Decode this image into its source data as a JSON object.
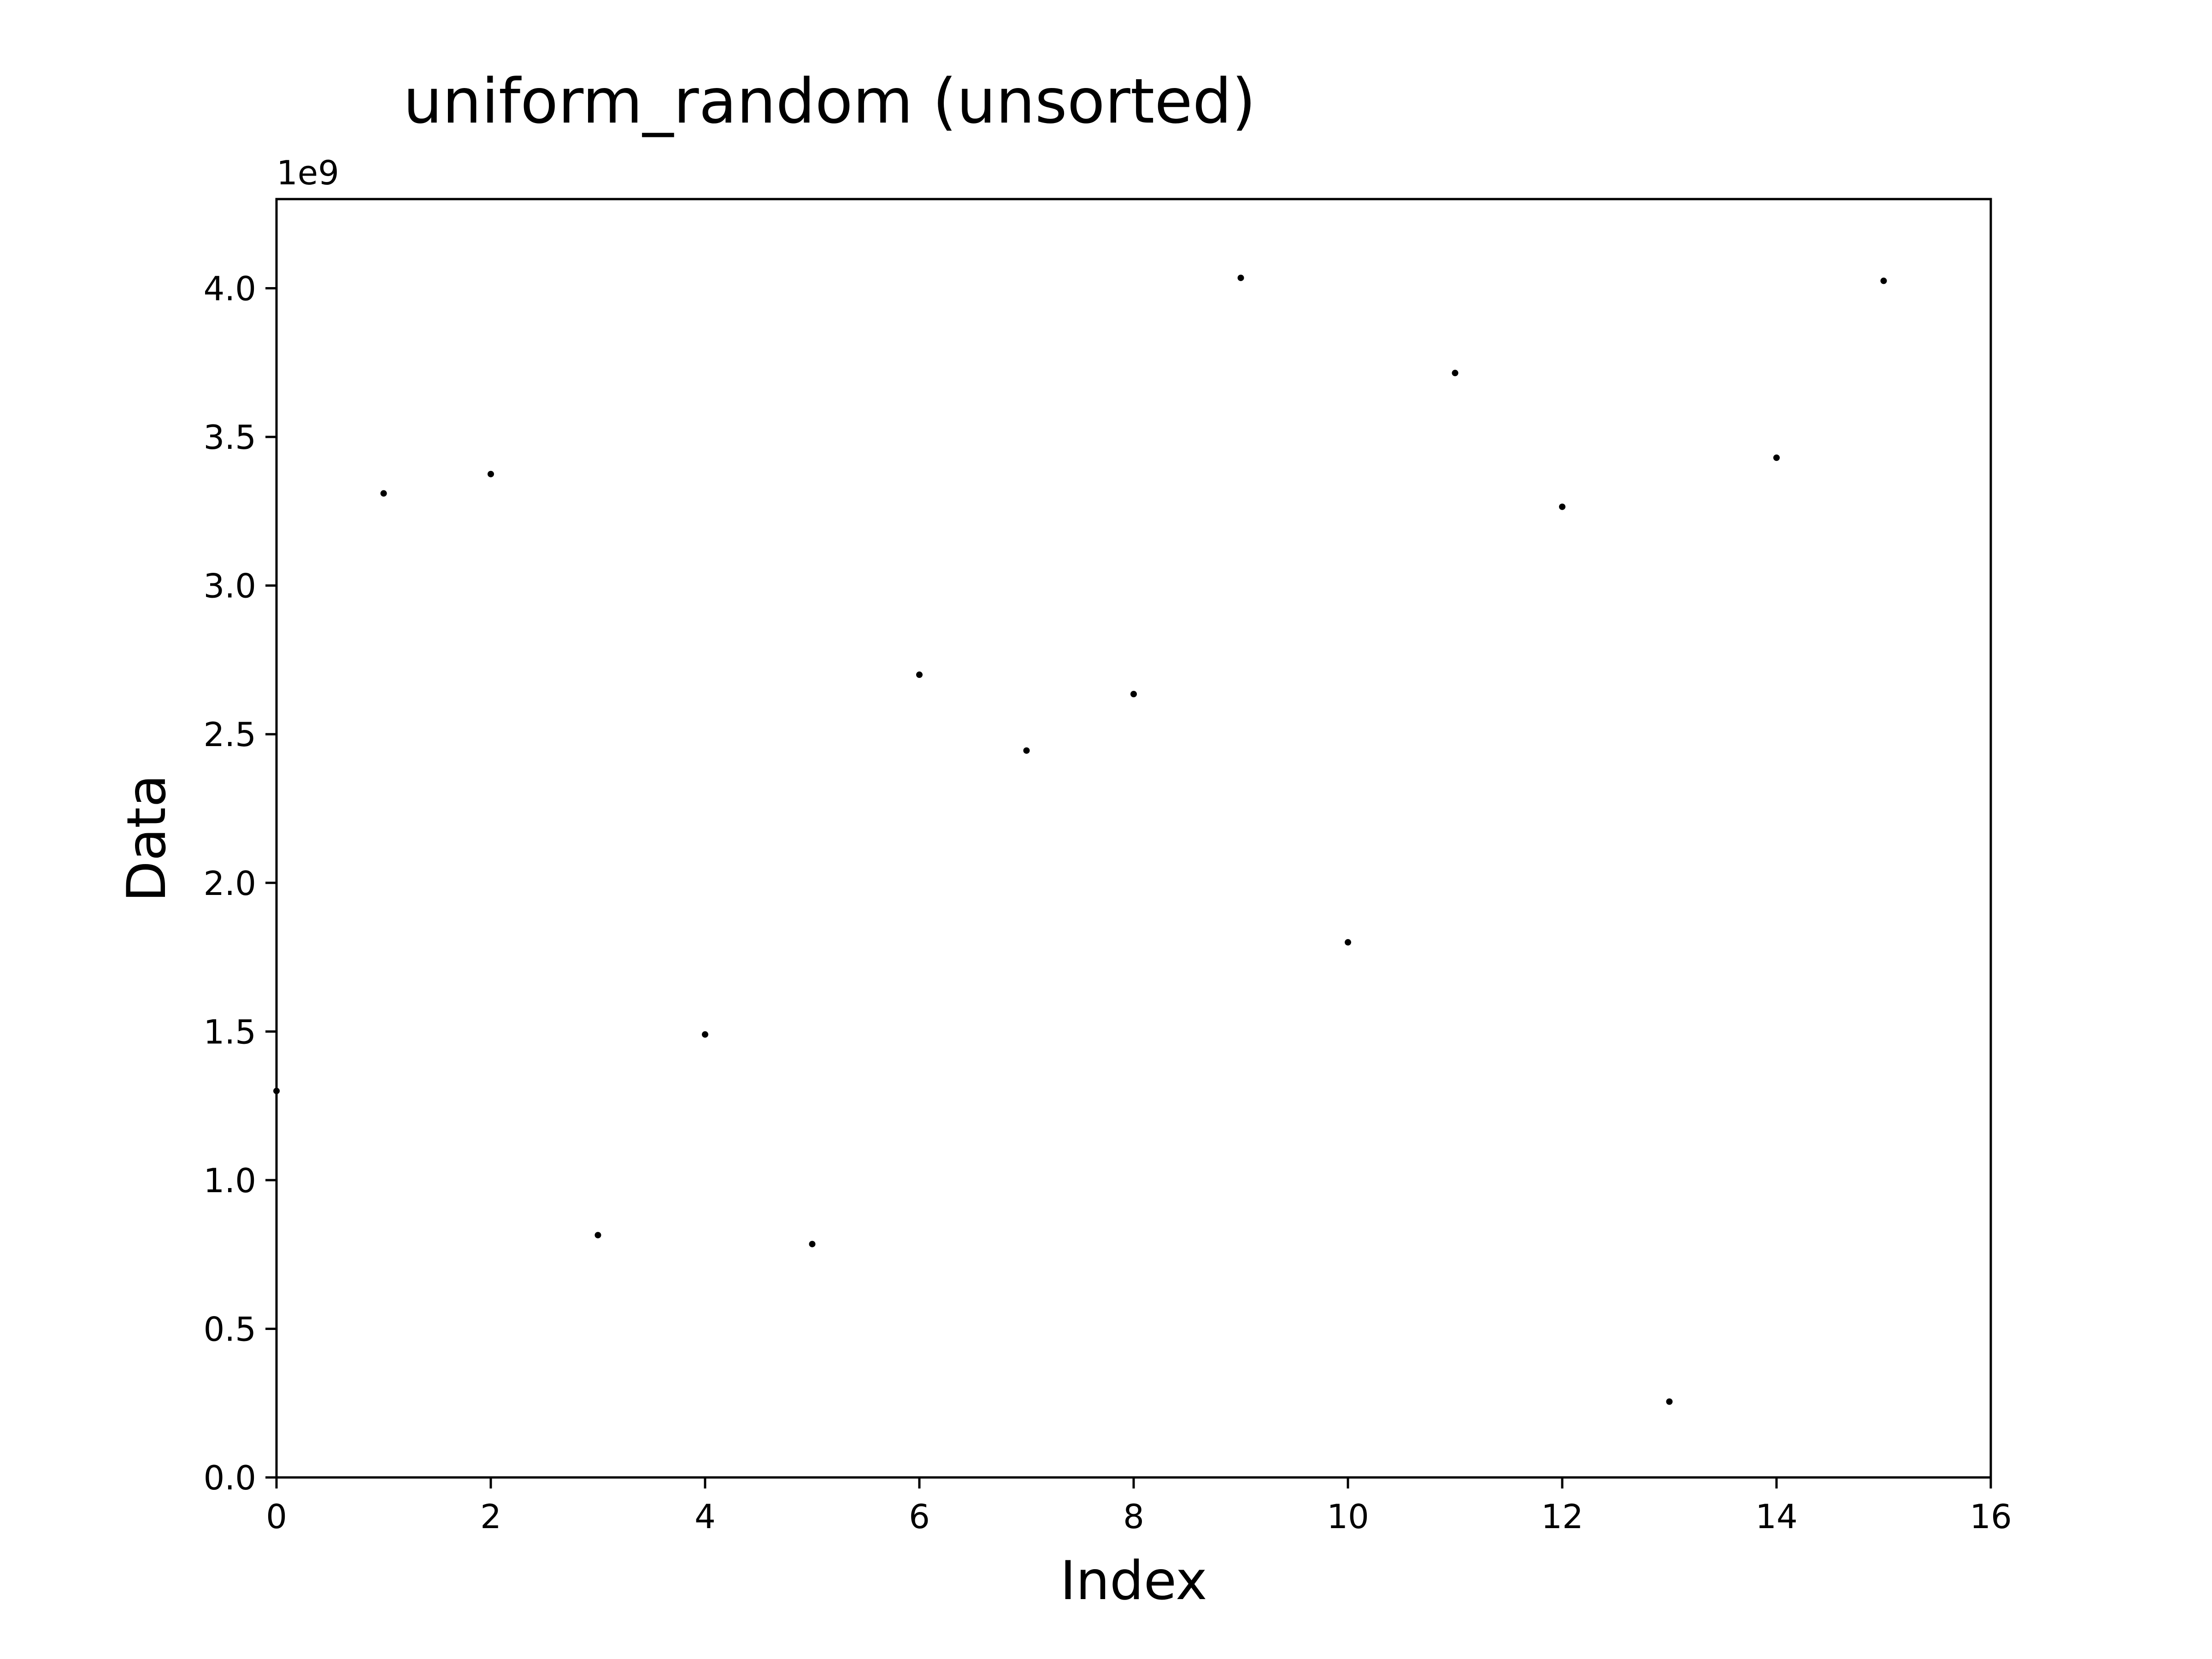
{
  "chart_data": {
    "type": "scatter",
    "title": "uniform_random (unsorted)",
    "xlabel": "Index",
    "ylabel": "Data",
    "y_offset_label": "1e9",
    "xlim": [
      0,
      16
    ],
    "ylim": [
      0,
      4.3
    ],
    "x_ticks": [
      0,
      2,
      4,
      6,
      8,
      10,
      12,
      14,
      16
    ],
    "x_tick_labels": [
      "0",
      "2",
      "4",
      "6",
      "8",
      "10",
      "12",
      "14",
      "16"
    ],
    "y_ticks": [
      0.0,
      0.5,
      1.0,
      1.5,
      2.0,
      2.5,
      3.0,
      3.5,
      4.0
    ],
    "y_tick_labels": [
      "0.0",
      "0.5",
      "1.0",
      "1.5",
      "2.0",
      "2.5",
      "3.0",
      "3.5",
      "4.0"
    ],
    "grid": false,
    "legend": "none",
    "marker_color": "#000000",
    "series": [
      {
        "x": [
          0,
          1,
          2,
          3,
          4,
          5,
          6,
          7,
          8,
          9,
          10,
          11,
          12,
          13,
          14,
          15
        ],
        "y": [
          1.3,
          3.31,
          3.375,
          0.815,
          1.49,
          0.785,
          2.7,
          2.445,
          2.635,
          4.035,
          1.8,
          3.715,
          3.265,
          0.255,
          3.43,
          4.025
        ]
      }
    ]
  }
}
